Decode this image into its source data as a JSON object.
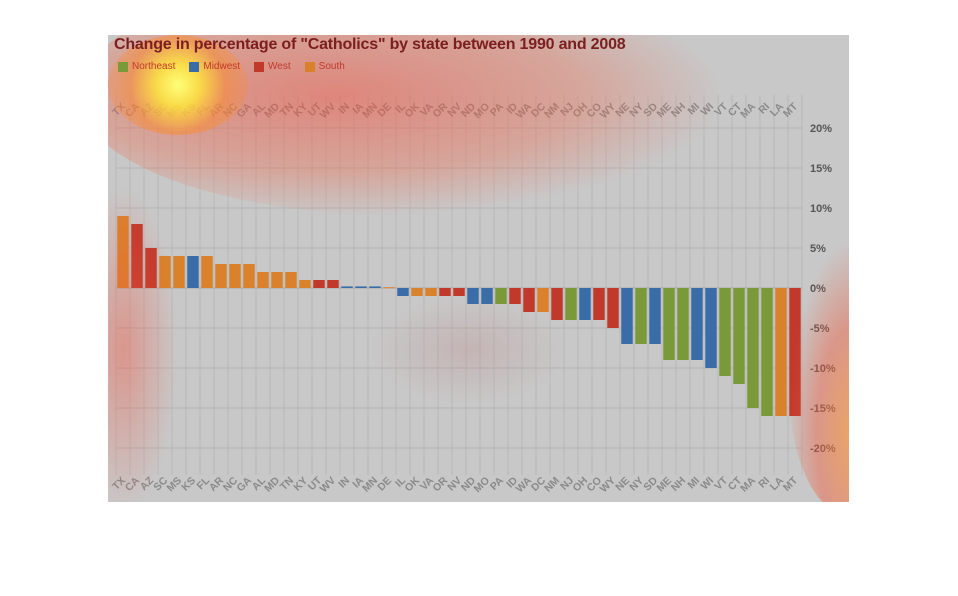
{
  "chart_data": {
    "type": "bar",
    "title": "Change in percentage of \"Catholics\" by state between 1990 and 2008",
    "xlabel": "",
    "ylabel": "",
    "ylim": [
      -20,
      20
    ],
    "yticks": [
      20,
      15,
      10,
      5,
      0,
      -5,
      -10,
      -15,
      -20
    ],
    "ytick_labels": [
      "20%",
      "15%",
      "10%",
      "5%",
      "0%",
      "-5%",
      "-10%",
      "-15%",
      "-20%"
    ],
    "grid": true,
    "legend_position": "top-left",
    "legend": [
      {
        "name": "Northeast",
        "color": "#7a9a3a"
      },
      {
        "name": "Midwest",
        "color": "#3a6da8"
      },
      {
        "name": "West",
        "color": "#c0392b"
      },
      {
        "name": "South",
        "color": "#d9822b"
      }
    ],
    "categories": [
      "TX",
      "CA",
      "AZ",
      "SC",
      "MS",
      "KS",
      "FL",
      "AR",
      "NC",
      "GA",
      "AL",
      "MD",
      "TN",
      "KY",
      "UT",
      "WV",
      "IN",
      "IA",
      "MN",
      "DE",
      "IL",
      "OK",
      "VA",
      "OR",
      "NV",
      "ND",
      "MO",
      "PA",
      "ID",
      "WA",
      "DC",
      "NM",
      "NJ",
      "OH",
      "CO",
      "WY",
      "NE",
      "NY",
      "SD",
      "ME",
      "NH",
      "MI",
      "WI",
      "VT",
      "CT",
      "MA",
      "RI",
      "LA",
      "MT"
    ],
    "values": [
      9,
      8,
      5,
      4,
      4,
      4,
      4,
      3,
      3,
      3,
      2,
      2,
      2,
      1,
      1,
      1,
      0.2,
      0.2,
      0.2,
      0.1,
      -1,
      -1,
      -1,
      -1,
      -1,
      -2,
      -2,
      -2,
      -2,
      -3,
      -3,
      -4,
      -4,
      -4,
      -4,
      -5,
      -7,
      -7,
      -7,
      -9,
      -9,
      -9,
      -10,
      -11,
      -12,
      -15,
      -16,
      -16,
      -16
    ],
    "regions": [
      "South",
      "West",
      "West",
      "South",
      "South",
      "Midwest",
      "South",
      "South",
      "South",
      "South",
      "South",
      "South",
      "South",
      "South",
      "West",
      "West",
      "Midwest",
      "Midwest",
      "Midwest",
      "South",
      "Midwest",
      "South",
      "South",
      "West",
      "West",
      "Midwest",
      "Midwest",
      "Northeast",
      "West",
      "West",
      "South",
      "West",
      "Northeast",
      "Midwest",
      "West",
      "West",
      "Midwest",
      "Northeast",
      "Midwest",
      "Northeast",
      "Northeast",
      "Midwest",
      "Midwest",
      "Northeast",
      "Northeast",
      "Northeast",
      "Northeast",
      "South",
      "West"
    ]
  }
}
